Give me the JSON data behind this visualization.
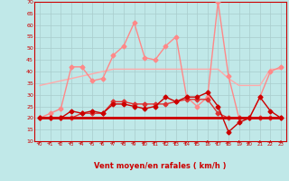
{
  "xlabel": "Vent moyen/en rafales ( km/h )",
  "background_color": "#c0e8e8",
  "grid_color": "#a8cccc",
  "x_ticks": [
    0,
    1,
    2,
    3,
    4,
    5,
    6,
    7,
    8,
    9,
    10,
    11,
    12,
    13,
    14,
    15,
    16,
    17,
    18,
    19,
    20,
    21,
    22,
    23
  ],
  "ylim": [
    10,
    70
  ],
  "yticks": [
    10,
    15,
    20,
    25,
    30,
    35,
    40,
    45,
    50,
    55,
    60,
    65,
    70
  ],
  "line_pink_upper": {
    "y": [
      34,
      35,
      36,
      37,
      38,
      39,
      40,
      41,
      41,
      41,
      41,
      41,
      41,
      41,
      41,
      41,
      41,
      41,
      37,
      34,
      34,
      34,
      41,
      41
    ],
    "color": "#ffaaaa",
    "linewidth": 1.0
  },
  "line_pink_lower": {
    "y": [
      20,
      20,
      20,
      20,
      20,
      20,
      20,
      20,
      20,
      20,
      20,
      20,
      20,
      20,
      20,
      20,
      20,
      20,
      20,
      20,
      20,
      20,
      20,
      20
    ],
    "color": "#ffaaaa",
    "linewidth": 1.0
  },
  "line_rafales": {
    "y": [
      20,
      22,
      24,
      42,
      42,
      36,
      37,
      47,
      51,
      61,
      46,
      45,
      51,
      55,
      29,
      25,
      29,
      70,
      38,
      20,
      20,
      29,
      40,
      42
    ],
    "color": "#ff8888",
    "linewidth": 1.0,
    "marker": "D",
    "markersize": 2.5
  },
  "line_mean_upper": {
    "y": [
      20,
      20,
      20,
      20,
      22,
      22,
      22,
      27,
      27,
      26,
      26,
      26,
      26,
      27,
      28,
      28,
      28,
      22,
      20,
      20,
      20,
      20,
      20,
      20
    ],
    "color": "#dd3333",
    "linewidth": 1.0,
    "marker": "D",
    "markersize": 2.5
  },
  "line_mean_lower": {
    "y": [
      20,
      20,
      20,
      23,
      22,
      23,
      22,
      26,
      26,
      25,
      24,
      25,
      29,
      27,
      29,
      29,
      31,
      25,
      14,
      18,
      20,
      29,
      23,
      20
    ],
    "color": "#cc0000",
    "linewidth": 1.0,
    "marker": "D",
    "markersize": 2.5
  },
  "line_flat": {
    "y": [
      20,
      20,
      20,
      20,
      20,
      20,
      20,
      20,
      20,
      20,
      20,
      20,
      20,
      20,
      20,
      20,
      20,
      20,
      20,
      20,
      20,
      20,
      20,
      20
    ],
    "color": "#cc0000",
    "linewidth": 2.0
  },
  "arrow_angles": [
    45,
    45,
    45,
    45,
    45,
    45,
    45,
    45,
    45,
    45,
    45,
    45,
    45,
    45,
    45,
    45,
    0,
    45,
    45,
    0,
    45,
    0,
    0,
    0
  ]
}
